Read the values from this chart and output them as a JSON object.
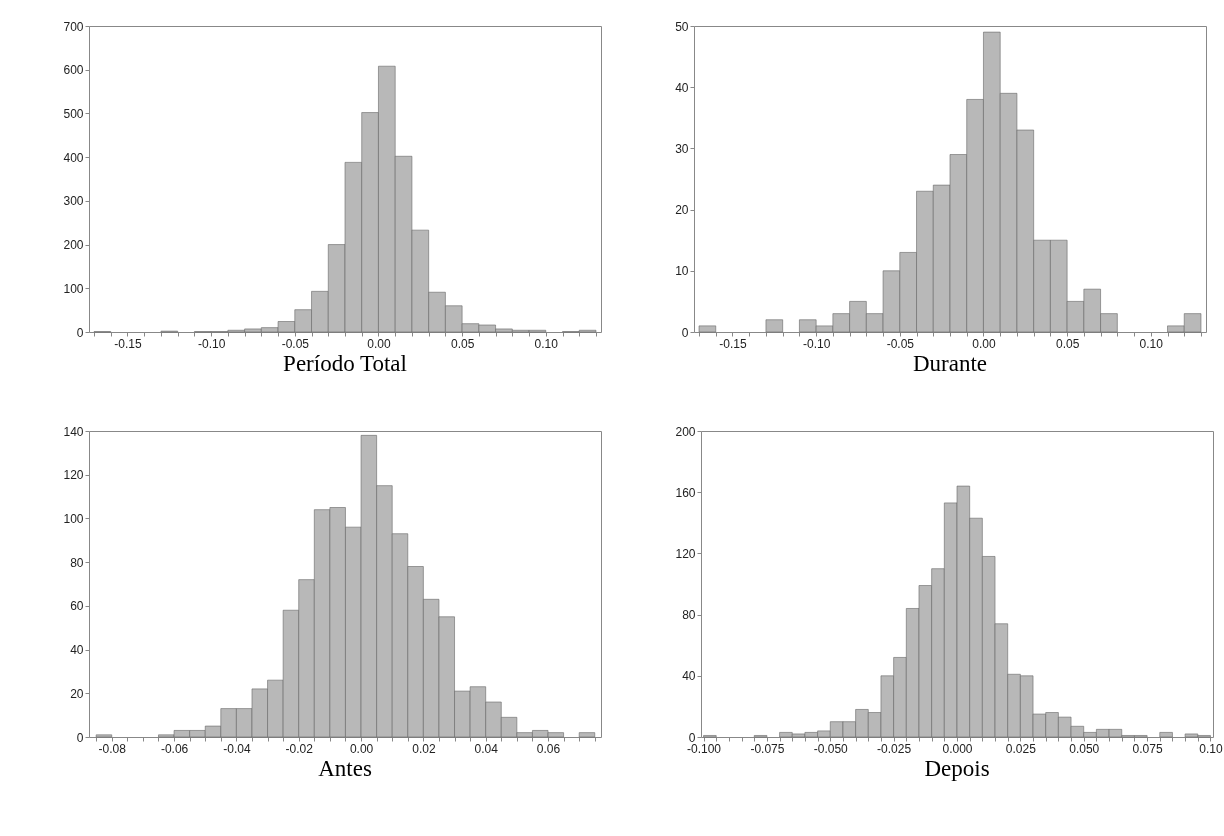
{
  "chart_data": [
    {
      "type": "histogram",
      "title": "Período Total",
      "color": "#b8b8b8",
      "grid": false,
      "bins": [
        -0.17,
        -0.16,
        -0.15,
        -0.14,
        -0.13,
        -0.12,
        -0.11,
        -0.1,
        -0.09,
        -0.08,
        -0.07,
        -0.06,
        -0.05,
        -0.04,
        -0.03,
        -0.02,
        -0.01,
        0.0,
        0.01,
        0.02,
        0.03,
        0.04,
        0.05,
        0.06,
        0.07,
        0.08,
        0.09,
        0.1,
        0.11,
        0.12,
        0.13
      ],
      "values": [
        1,
        0,
        0,
        0,
        2,
        0,
        1,
        1,
        4,
        7,
        10,
        24,
        51,
        93,
        200,
        388,
        502,
        608,
        402,
        233,
        91,
        60,
        19,
        16,
        7,
        4,
        4,
        0,
        1,
        4
      ],
      "xlim": [
        -0.173,
        0.133
      ],
      "ylim": [
        0,
        700
      ],
      "yticks": [
        0,
        100,
        200,
        300,
        400,
        500,
        600,
        700
      ],
      "xticks": [
        {
          "value": -0.17,
          "label": null
        },
        {
          "value": -0.16,
          "label": null
        },
        -0.15,
        {
          "value": -0.14,
          "label": null
        },
        {
          "value": -0.13,
          "label": null
        },
        {
          "value": -0.12,
          "label": null
        },
        {
          "value": -0.11,
          "label": null
        },
        {
          "value": -0.1,
          "label": "-0.10"
        },
        {
          "value": -0.09,
          "label": null
        },
        {
          "value": -0.08,
          "label": null
        },
        {
          "value": -0.07,
          "label": null
        },
        {
          "value": -0.06,
          "label": null
        },
        -0.05,
        {
          "value": -0.04,
          "label": null
        },
        {
          "value": -0.03,
          "label": null
        },
        {
          "value": -0.02,
          "label": null
        },
        {
          "value": -0.01,
          "label": null
        },
        {
          "value": 0,
          "label": "0.00"
        },
        {
          "value": 0.01,
          "label": null
        },
        {
          "value": 0.02,
          "label": null
        },
        {
          "value": 0.03,
          "label": null
        },
        {
          "value": 0.04,
          "label": null
        },
        0.05,
        {
          "value": 0.06,
          "label": null
        },
        {
          "value": 0.07,
          "label": null
        },
        {
          "value": 0.08,
          "label": null
        },
        {
          "value": 0.09,
          "label": null
        },
        {
          "value": 0.1,
          "label": "0.10"
        },
        {
          "value": 0.11,
          "label": null
        },
        {
          "value": 0.12,
          "label": null
        },
        {
          "value": 0.13,
          "label": null
        }
      ]
    },
    {
      "type": "histogram",
      "title": "Durante",
      "color": "#b8b8b8",
      "grid": false,
      "bins": [
        -0.17,
        -0.16,
        -0.15,
        -0.14,
        -0.13,
        -0.12,
        -0.11,
        -0.1,
        -0.09,
        -0.08,
        -0.07,
        -0.06,
        -0.05,
        -0.04,
        -0.03,
        -0.02,
        -0.01,
        0.0,
        0.01,
        0.02,
        0.03,
        0.04,
        0.05,
        0.06,
        0.07,
        0.08,
        0.09,
        0.1,
        0.11,
        0.12,
        0.13
      ],
      "values": [
        1,
        0,
        0,
        0,
        2,
        0,
        2,
        1,
        3,
        5,
        3,
        10,
        13,
        23,
        24,
        29,
        38,
        49,
        39,
        33,
        15,
        15,
        5,
        7,
        3,
        0,
        0,
        0,
        1,
        3
      ],
      "xlim": [
        -0.173,
        0.133
      ],
      "ylim": [
        0,
        50
      ],
      "yticks": [
        0,
        10,
        20,
        30,
        40,
        50
      ],
      "xticks": [
        {
          "value": -0.17,
          "label": null
        },
        {
          "value": -0.16,
          "label": null
        },
        -0.15,
        {
          "value": -0.14,
          "label": null
        },
        {
          "value": -0.13,
          "label": null
        },
        {
          "value": -0.12,
          "label": null
        },
        {
          "value": -0.11,
          "label": null
        },
        {
          "value": -0.1,
          "label": "-0.10"
        },
        {
          "value": -0.09,
          "label": null
        },
        {
          "value": -0.08,
          "label": null
        },
        {
          "value": -0.07,
          "label": null
        },
        {
          "value": -0.06,
          "label": null
        },
        -0.05,
        {
          "value": -0.04,
          "label": null
        },
        {
          "value": -0.03,
          "label": null
        },
        {
          "value": -0.02,
          "label": null
        },
        {
          "value": -0.01,
          "label": null
        },
        {
          "value": 0,
          "label": "0.00"
        },
        {
          "value": 0.01,
          "label": null
        },
        {
          "value": 0.02,
          "label": null
        },
        {
          "value": 0.03,
          "label": null
        },
        {
          "value": 0.04,
          "label": null
        },
        0.05,
        {
          "value": 0.06,
          "label": null
        },
        {
          "value": 0.07,
          "label": null
        },
        {
          "value": 0.08,
          "label": null
        },
        {
          "value": 0.09,
          "label": null
        },
        {
          "value": 0.1,
          "label": "0.10"
        },
        {
          "value": 0.11,
          "label": null
        },
        {
          "value": 0.12,
          "label": null
        },
        {
          "value": 0.13,
          "label": null
        }
      ]
    },
    {
      "type": "histogram",
      "title": "Antes",
      "color": "#b8b8b8",
      "grid": false,
      "bins": [
        -0.085,
        -0.08,
        -0.075,
        -0.07,
        -0.065,
        -0.06,
        -0.055,
        -0.05,
        -0.045,
        -0.04,
        -0.035,
        -0.03,
        -0.025,
        -0.02,
        -0.015,
        -0.01,
        -0.005,
        0.0,
        0.005,
        0.01,
        0.015,
        0.02,
        0.025,
        0.03,
        0.035,
        0.04,
        0.045,
        0.05,
        0.055,
        0.06,
        0.065,
        0.07,
        0.075
      ],
      "values": [
        1,
        0,
        0,
        0,
        1,
        3,
        3,
        5,
        13,
        13,
        22,
        26,
        58,
        72,
        104,
        105,
        96,
        138,
        115,
        93,
        78,
        63,
        55,
        21,
        23,
        16,
        9,
        2,
        3,
        2,
        0,
        2
      ],
      "xlim": [
        -0.0873,
        0.077
      ],
      "ylim": [
        0,
        140
      ],
      "yticks": [
        0,
        20,
        40,
        60,
        80,
        100,
        120,
        140
      ],
      "xticks": [
        {
          "value": -0.085,
          "label": null
        },
        -0.08,
        {
          "value": -0.075,
          "label": null
        },
        {
          "value": -0.07,
          "label": null
        },
        {
          "value": -0.065,
          "label": null
        },
        -0.06,
        {
          "value": -0.055,
          "label": null
        },
        {
          "value": -0.05,
          "label": null
        },
        {
          "value": -0.045,
          "label": null
        },
        -0.04,
        {
          "value": -0.035,
          "label": null
        },
        {
          "value": -0.03,
          "label": null
        },
        {
          "value": -0.025,
          "label": null
        },
        -0.02,
        {
          "value": -0.015,
          "label": null
        },
        {
          "value": -0.01,
          "label": null
        },
        {
          "value": -0.005,
          "label": null
        },
        {
          "value": 0,
          "label": "0.00"
        },
        {
          "value": 0.005,
          "label": null
        },
        {
          "value": 0.01,
          "label": null
        },
        {
          "value": 0.015,
          "label": null
        },
        0.02,
        {
          "value": 0.025,
          "label": null
        },
        {
          "value": 0.03,
          "label": null
        },
        {
          "value": 0.035,
          "label": null
        },
        0.04,
        {
          "value": 0.045,
          "label": null
        },
        {
          "value": 0.05,
          "label": null
        },
        {
          "value": 0.055,
          "label": null
        },
        0.06,
        {
          "value": 0.065,
          "label": null
        },
        {
          "value": 0.07,
          "label": null
        },
        {
          "value": 0.075,
          "label": null
        }
      ]
    },
    {
      "type": "histogram",
      "title": "Depois",
      "color": "#b8b8b8",
      "grid": false,
      "bins": [
        -0.1,
        -0.095,
        -0.09,
        -0.085,
        -0.08,
        -0.075,
        -0.07,
        -0.065,
        -0.06,
        -0.055,
        -0.05,
        -0.045,
        -0.04,
        -0.035,
        -0.03,
        -0.025,
        -0.02,
        -0.015,
        -0.01,
        -0.005,
        0.0,
        0.005,
        0.01,
        0.015,
        0.02,
        0.025,
        0.03,
        0.035,
        0.04,
        0.045,
        0.05,
        0.055,
        0.06,
        0.065,
        0.07,
        0.075,
        0.08,
        0.085,
        0.09,
        0.095,
        0.1
      ],
      "values": [
        1,
        0,
        0,
        0,
        1,
        0,
        3,
        2,
        3,
        4,
        10,
        10,
        18,
        16,
        40,
        52,
        84,
        99,
        110,
        153,
        164,
        143,
        118,
        74,
        41,
        40,
        15,
        16,
        13,
        7,
        3,
        5,
        5,
        1,
        1,
        0,
        3,
        0,
        2,
        1
      ],
      "xlim": [
        -0.101,
        0.101
      ],
      "ylim": [
        0,
        200
      ],
      "yticks": [
        0,
        40,
        80,
        120,
        160,
        200
      ],
      "xticks": [
        {
          "value": -0.1,
          "label": "-0.100"
        },
        {
          "value": -0.095,
          "label": null
        },
        {
          "value": -0.09,
          "label": null
        },
        {
          "value": -0.085,
          "label": null
        },
        {
          "value": -0.08,
          "label": null
        },
        -0.075,
        {
          "value": -0.07,
          "label": null
        },
        {
          "value": -0.065,
          "label": null
        },
        {
          "value": -0.06,
          "label": null
        },
        {
          "value": -0.055,
          "label": null
        },
        {
          "value": -0.05,
          "label": "-0.050"
        },
        {
          "value": -0.045,
          "label": null
        },
        {
          "value": -0.04,
          "label": null
        },
        {
          "value": -0.035,
          "label": null
        },
        {
          "value": -0.03,
          "label": null
        },
        -0.025,
        {
          "value": -0.02,
          "label": null
        },
        {
          "value": -0.015,
          "label": null
        },
        {
          "value": -0.01,
          "label": null
        },
        {
          "value": -0.005,
          "label": null
        },
        {
          "value": 0,
          "label": "0.000"
        },
        {
          "value": 0.005,
          "label": null
        },
        {
          "value": 0.01,
          "label": null
        },
        {
          "value": 0.015,
          "label": null
        },
        {
          "value": 0.02,
          "label": null
        },
        0.025,
        {
          "value": 0.03,
          "label": null
        },
        {
          "value": 0.035,
          "label": null
        },
        {
          "value": 0.04,
          "label": null
        },
        {
          "value": 0.045,
          "label": null
        },
        {
          "value": 0.05,
          "label": "0.050"
        },
        {
          "value": 0.055,
          "label": null
        },
        {
          "value": 0.06,
          "label": null
        },
        {
          "value": 0.065,
          "label": null
        },
        {
          "value": 0.07,
          "label": null
        },
        0.075,
        {
          "value": 0.08,
          "label": null
        },
        {
          "value": 0.085,
          "label": null
        },
        {
          "value": 0.09,
          "label": null
        },
        {
          "value": 0.095,
          "label": null
        },
        {
          "value": 0.1,
          "label": "0.10"
        }
      ]
    }
  ]
}
